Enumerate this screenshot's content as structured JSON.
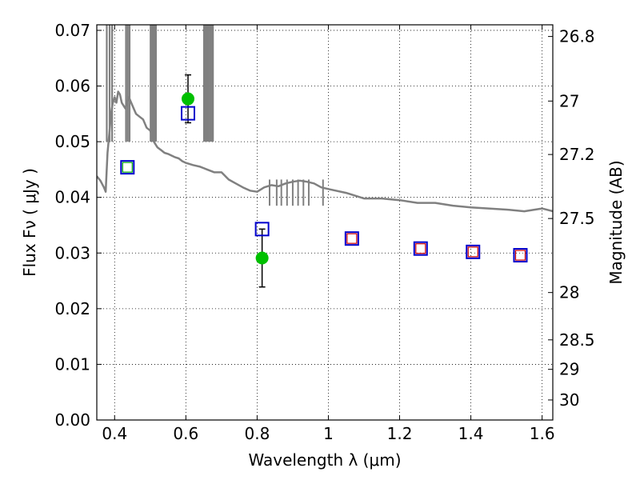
{
  "chart_data": {
    "type": "scatter",
    "title": "",
    "xlabel": "Wavelength  λ (μm)",
    "ylabel": "Flux  Fν  ( μJy )",
    "y2label": "Magnitude (AB)",
    "xlim": [
      0.35,
      1.63
    ],
    "ylim": [
      0.0,
      0.071
    ],
    "grid": true,
    "x_ticks": [
      0.4,
      0.6,
      0.8,
      1.0,
      1.2,
      1.4,
      1.6
    ],
    "x_tick_labels": [
      "0.4",
      "0.6",
      "0.8",
      "1",
      "1.2",
      "1.4",
      "1.6"
    ],
    "y_ticks": [
      0.0,
      0.01,
      0.02,
      0.03,
      0.04,
      0.05,
      0.06,
      0.07
    ],
    "y_tick_labels": [
      "0.00",
      "0.01",
      "0.02",
      "0.03",
      "0.04",
      "0.05",
      "0.06",
      "0.07"
    ],
    "y2_ticks": [
      {
        "label": "26.8",
        "flux": 0.0689
      },
      {
        "label": "27",
        "flux": 0.0573
      },
      {
        "label": "27.2",
        "flux": 0.0477
      },
      {
        "label": "27.5",
        "flux": 0.0362
      },
      {
        "label": "28",
        "flux": 0.0229
      },
      {
        "label": "28.5",
        "flux": 0.0144
      },
      {
        "label": "29",
        "flux": 0.0091
      },
      {
        "label": "30",
        "flux": 0.0036
      }
    ],
    "series": [
      {
        "kind": "line",
        "color": "#808080",
        "x": [
          0.35,
          0.36,
          0.37,
          0.375,
          0.38,
          0.383,
          0.386,
          0.39,
          0.395,
          0.4,
          0.405,
          0.41,
          0.415,
          0.42,
          0.43,
          0.44,
          0.45,
          0.46,
          0.47,
          0.48,
          0.49,
          0.5,
          0.51,
          0.52,
          0.53,
          0.54,
          0.55,
          0.56,
          0.57,
          0.58,
          0.59,
          0.6,
          0.62,
          0.64,
          0.66,
          0.68,
          0.7,
          0.72,
          0.74,
          0.76,
          0.78,
          0.8,
          0.82,
          0.84,
          0.86,
          0.88,
          0.9,
          0.92,
          0.94,
          0.96,
          0.98,
          1.0,
          1.05,
          1.1,
          1.15,
          1.2,
          1.25,
          1.3,
          1.35,
          1.4,
          1.45,
          1.5,
          1.55,
          1.6,
          1.63
        ],
        "y": [
          0.0438,
          0.043,
          0.0418,
          0.041,
          0.048,
          0.05,
          0.052,
          0.055,
          0.057,
          0.058,
          0.057,
          0.059,
          0.0585,
          0.057,
          0.056,
          0.058,
          0.0565,
          0.055,
          0.0545,
          0.054,
          0.0525,
          0.052,
          0.05,
          0.049,
          0.0485,
          0.048,
          0.0478,
          0.0475,
          0.0472,
          0.047,
          0.0465,
          0.0462,
          0.0458,
          0.0455,
          0.045,
          0.0445,
          0.0445,
          0.0432,
          0.0425,
          0.0418,
          0.0412,
          0.041,
          0.0418,
          0.0422,
          0.042,
          0.0425,
          0.0428,
          0.043,
          0.0428,
          0.0425,
          0.0418,
          0.0415,
          0.0408,
          0.0398,
          0.0398,
          0.0395,
          0.039,
          0.039,
          0.0385,
          0.0382,
          0.038,
          0.0378,
          0.0375,
          0.038,
          0.0375
        ]
      },
      {
        "kind": "points-with-error",
        "color": "#00c000",
        "x": [
          0.606,
          0.814
        ],
        "y": [
          0.0577,
          0.0291
        ],
        "yerr": [
          0.0043,
          0.0052
        ]
      },
      {
        "kind": "squares",
        "color": "#0000cc",
        "x": [
          0.436,
          0.606,
          0.814,
          1.066,
          1.259,
          1.406,
          1.539
        ],
        "y": [
          0.0454,
          0.0551,
          0.0343,
          0.0326,
          0.0308,
          0.0302,
          0.0296
        ]
      },
      {
        "kind": "small-squares",
        "color": "#cc0000",
        "x": [
          1.066,
          1.259,
          1.406,
          1.539
        ],
        "y": [
          0.0326,
          0.0308,
          0.0302,
          0.0296
        ]
      },
      {
        "kind": "small-squares",
        "color": "#00aa00",
        "x": [
          0.436
        ],
        "y": [
          0.0454
        ]
      }
    ]
  }
}
